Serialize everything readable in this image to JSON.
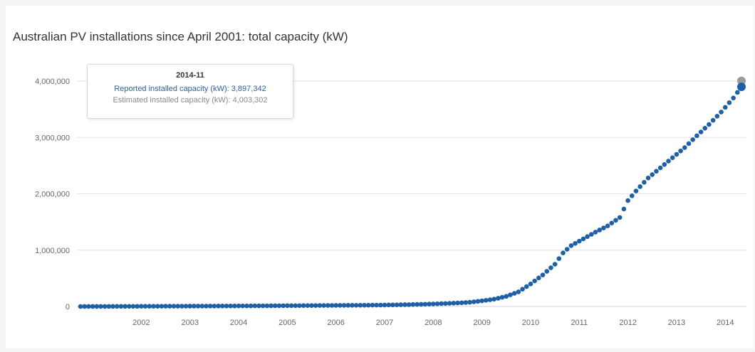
{
  "chart_data": {
    "type": "scatter",
    "title": "Australian PV installations since April 2001: total capacity (kW)",
    "xlabel": "",
    "ylabel": "",
    "xlim": [
      "2001-04",
      "2014-11"
    ],
    "ylim": [
      0,
      4000000
    ],
    "y_ticks": [
      "0",
      "1,000,000",
      "2,000,000",
      "3,000,000",
      "4,000,000"
    ],
    "x_ticks": [
      "2002",
      "2003",
      "2004",
      "2005",
      "2006",
      "2007",
      "2008",
      "2009",
      "2010",
      "2011",
      "2012",
      "2013",
      "2014"
    ],
    "grid": true,
    "legend": "none",
    "series": [
      {
        "name": "Reported installed capacity (kW)",
        "color": "#1f5fa6",
        "points": [
          [
            "2001-04",
            0
          ],
          [
            "2002-01",
            2000
          ],
          [
            "2003-01",
            5000
          ],
          [
            "2004-01",
            8000
          ],
          [
            "2005-01",
            12000
          ],
          [
            "2006-01",
            17000
          ],
          [
            "2007-01",
            22000
          ],
          [
            "2007-07",
            26000
          ],
          [
            "2008-01",
            33000
          ],
          [
            "2008-07",
            45000
          ],
          [
            "2009-01",
            62000
          ],
          [
            "2009-04",
            75000
          ],
          [
            "2009-07",
            100000
          ],
          [
            "2009-10",
            130000
          ],
          [
            "2010-01",
            180000
          ],
          [
            "2010-04",
            260000
          ],
          [
            "2010-07",
            400000
          ],
          [
            "2010-10",
            560000
          ],
          [
            "2011-01",
            750000
          ],
          [
            "2011-03",
            950000
          ],
          [
            "2011-05",
            1080000
          ],
          [
            "2011-08",
            1200000
          ],
          [
            "2011-11",
            1320000
          ],
          [
            "2012-02",
            1430000
          ],
          [
            "2012-05",
            1580000
          ],
          [
            "2012-07",
            1880000
          ],
          [
            "2012-09",
            2050000
          ],
          [
            "2012-12",
            2280000
          ],
          [
            "2013-03",
            2460000
          ],
          [
            "2013-06",
            2640000
          ],
          [
            "2013-09",
            2820000
          ],
          [
            "2013-12",
            3030000
          ],
          [
            "2014-03",
            3230000
          ],
          [
            "2014-06",
            3450000
          ],
          [
            "2014-09",
            3700000
          ],
          [
            "2014-11",
            3897342
          ]
        ]
      },
      {
        "name": "Estimated installed capacity (kW)",
        "color": "#9a9a9a",
        "points": [
          [
            "2014-11",
            4003302
          ]
        ]
      }
    ]
  },
  "tooltip": {
    "date": "2014-11",
    "reported": "Reported installed capacity (kW): 3,897,342",
    "estimated": "Estimated installed capacity (kW): 4,003,302"
  }
}
